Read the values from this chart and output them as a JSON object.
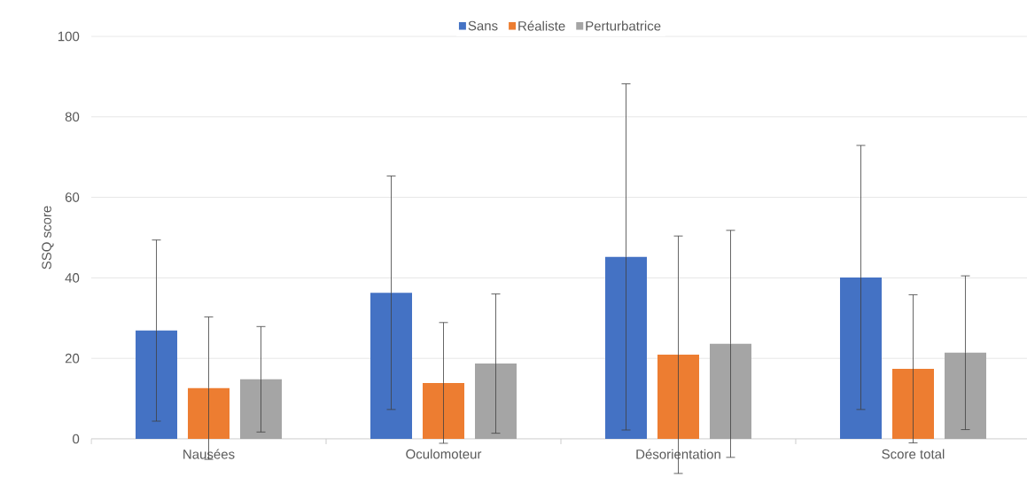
{
  "chart_data": {
    "type": "bar",
    "ylabel": "SSQ score",
    "categories": [
      "Nausées",
      "Oculomoteur",
      "Désorientation",
      "Score total"
    ],
    "series": [
      {
        "name": "Sans",
        "color": "#4472c4",
        "values": [
          26.9,
          36.3,
          45.2,
          40.1
        ],
        "errors": [
          22.5,
          29,
          43,
          32.8
        ]
      },
      {
        "name": "Réaliste",
        "color": "#ed7d31",
        "values": [
          12.6,
          13.9,
          20.9,
          17.4
        ],
        "errors": [
          17.7,
          15,
          29.5,
          18.4
        ]
      },
      {
        "name": "Perturbatrice",
        "color": "#a5a5a5",
        "values": [
          14.8,
          18.7,
          23.6,
          21.4
        ],
        "errors": [
          13.1,
          17.3,
          28.2,
          19.1
        ]
      }
    ],
    "ylim": [
      0,
      100
    ],
    "yticks": [
      0,
      20,
      40,
      60,
      80,
      100
    ],
    "grid": "y",
    "legend": "top"
  }
}
